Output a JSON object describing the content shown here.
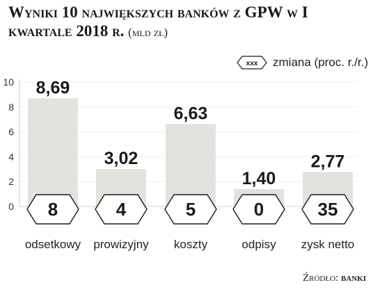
{
  "header": {
    "title_main": "Wyniki 10 największych banków z GPW w I kwartale 2018 r.",
    "title_unit": "(mld zł)"
  },
  "legend": {
    "badge_text": "xxx",
    "label": "zmiana (proc. r./r.)"
  },
  "source": {
    "label": "Źródło:",
    "value": "banki"
  },
  "colors": {
    "bar": "#e2e2de",
    "hexagon_fill": "#ffffff",
    "hexagon_stroke": "#1a1a1a",
    "grid": "#bdbdbd",
    "text": "#1a1a1a"
  },
  "chart_data": {
    "type": "bar",
    "title": "Wyniki 10 największych banków z GPW w I kwartale 2018 r. (mld zł)",
    "categories": [
      "odsetkowy",
      "prowizyjny",
      "koszty",
      "odpisy",
      "zysk netto"
    ],
    "values": [
      8.69,
      3.02,
      6.63,
      1.4,
      2.77
    ],
    "value_labels": [
      "8,69",
      "3,02",
      "6,63",
      "1,40",
      "2,77"
    ],
    "changes": [
      "8",
      "4",
      "5",
      "0",
      "35"
    ],
    "changes_label": "zmiana (proc. r./r.)",
    "yticks": [
      "0",
      "2",
      "4",
      "6",
      "8",
      "10"
    ],
    "ylim": [
      0,
      10
    ],
    "grid": true,
    "legend_placement": "top-right"
  }
}
